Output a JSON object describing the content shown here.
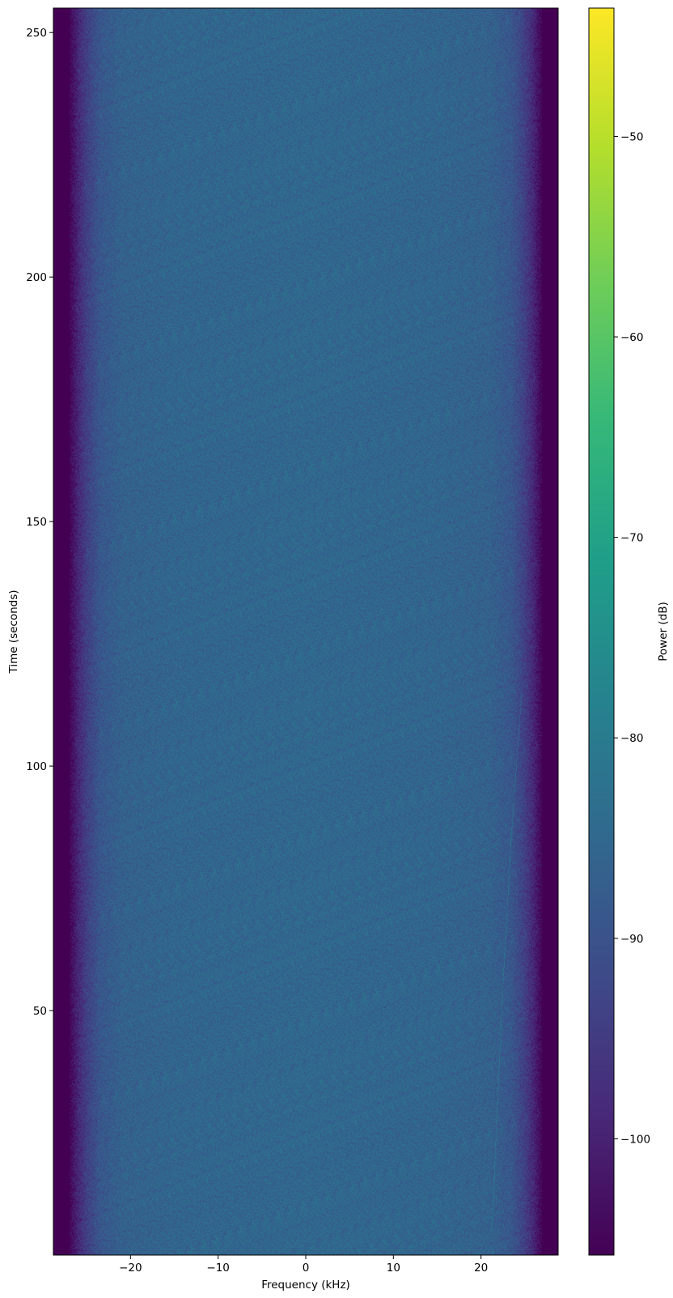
{
  "chart_data": {
    "type": "heatmap",
    "title": "",
    "xlabel": "Frequency (kHz)",
    "ylabel": "Time (seconds)",
    "xlim": [
      -28.8,
      28.8
    ],
    "ylim": [
      0,
      255
    ],
    "xticks": [
      -20,
      -10,
      0,
      10,
      20
    ],
    "xtick_labels": [
      "−20",
      "−10",
      "0",
      "10",
      "20"
    ],
    "yticks": [
      50,
      100,
      150,
      200,
      250
    ],
    "ytick_labels": [
      "50",
      "100",
      "150",
      "200",
      "250"
    ],
    "colormap": "viridis",
    "colorbar": {
      "label": "Power (dB)",
      "range": [
        -105.8,
        -43.6
      ],
      "ticks": [
        -50,
        -60,
        -70,
        -80,
        -90,
        -100
      ],
      "tick_labels": [
        "−50",
        "−60",
        "−70",
        "−80",
        "−90",
        "−100"
      ]
    },
    "power_profile_db": {
      "frequency_khz": [
        -28.8,
        -27.0,
        -26.0,
        -25.0,
        -23.5,
        -21.0,
        -15.0,
        0,
        15.0,
        21.0,
        23.5,
        25.0,
        26.0,
        27.0,
        28.8
      ],
      "mean_power": [
        -105.8,
        -105.8,
        -99,
        -94,
        -89,
        -86.5,
        -85.5,
        -85,
        -85.5,
        -86.5,
        -89,
        -94,
        -99,
        -105.8,
        -105.8
      ]
    },
    "faint_tone": {
      "frequency_khz": [
        21.2,
        21.8,
        22.6,
        23.4,
        24.6
      ],
      "time_s": [
        5,
        30,
        60,
        85,
        115
      ]
    },
    "grid": false
  }
}
